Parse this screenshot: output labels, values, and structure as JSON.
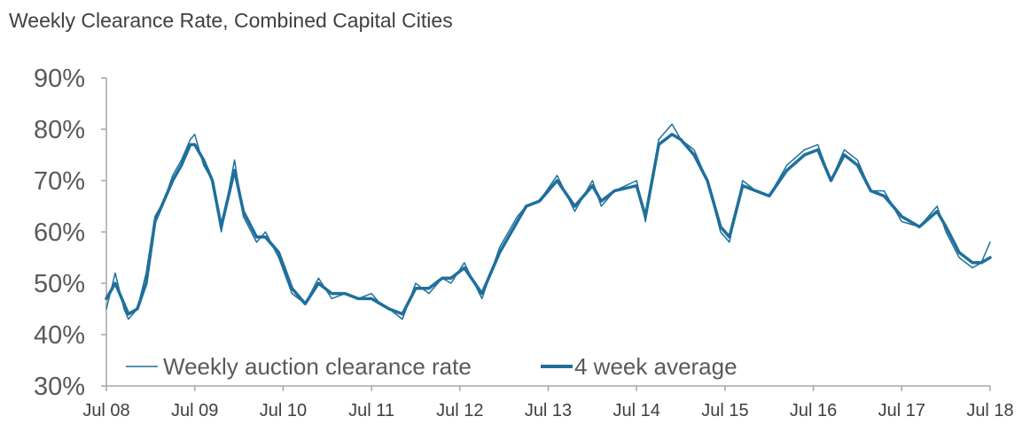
{
  "chart_data": {
    "type": "line",
    "title": "Weekly Clearance Rate, Combined Capital Cities",
    "xlabel": "",
    "ylabel": "",
    "ylim": [
      30,
      90
    ],
    "y_ticks": [
      "30%",
      "40%",
      "50%",
      "60%",
      "70%",
      "80%",
      "90%"
    ],
    "y_tick_values": [
      30,
      40,
      50,
      60,
      70,
      80,
      90
    ],
    "x_ticks": [
      "Jul 08",
      "Jul 09",
      "Jul 10",
      "Jul 11",
      "Jul 12",
      "Jul 13",
      "Jul 14",
      "Jul 15",
      "Jul 16",
      "Jul 17",
      "Jul 18"
    ],
    "x_tick_values": [
      2008.5,
      2009.5,
      2010.5,
      2011.5,
      2012.5,
      2013.5,
      2014.5,
      2015.5,
      2016.5,
      2017.5,
      2018.5
    ],
    "xlim": [
      2008.5,
      2018.5
    ],
    "colors": {
      "series": "#1f6f9c",
      "axis": "#a6a6a6"
    },
    "series": [
      {
        "name": "Weekly auction clearance rate",
        "style": "thin",
        "x": [
          2008.5,
          2008.6,
          2008.7,
          2008.75,
          2008.85,
          2008.95,
          2009.05,
          2009.15,
          2009.25,
          2009.35,
          2009.45,
          2009.5,
          2009.6,
          2009.7,
          2009.8,
          2009.95,
          2010.05,
          2010.2,
          2010.3,
          2010.45,
          2010.6,
          2010.75,
          2010.9,
          2011.05,
          2011.2,
          2011.35,
          2011.5,
          2011.6,
          2011.7,
          2011.85,
          2012.0,
          2012.15,
          2012.3,
          2012.4,
          2012.55,
          2012.75,
          2012.95,
          2013.15,
          2013.25,
          2013.4,
          2013.6,
          2013.8,
          2014.0,
          2014.1,
          2014.25,
          2014.5,
          2014.6,
          2014.75,
          2014.9,
          2015.0,
          2015.15,
          2015.3,
          2015.45,
          2015.55,
          2015.7,
          2015.85,
          2016.0,
          2016.2,
          2016.4,
          2016.55,
          2016.7,
          2016.85,
          2017.0,
          2017.15,
          2017.3,
          2017.5,
          2017.7,
          2017.9,
          2018.0,
          2018.15,
          2018.3,
          2018.4,
          2018.5
        ],
        "values": [
          45,
          52,
          45,
          43,
          45,
          52,
          63,
          66,
          71,
          74,
          78,
          79,
          73,
          70,
          60,
          74,
          63,
          58,
          60,
          55,
          48,
          46,
          51,
          47,
          48,
          47,
          48,
          46,
          45,
          43,
          50,
          48,
          51,
          50,
          54,
          47,
          57,
          63,
          65,
          66,
          71,
          64,
          70,
          65,
          68,
          70,
          62,
          78,
          81,
          78,
          76,
          70,
          60,
          58,
          70,
          68,
          67,
          73,
          76,
          77,
          70,
          76,
          74,
          68,
          68,
          62,
          61,
          65,
          60,
          55,
          53,
          54,
          58
        ]
      },
      {
        "name": "4 week average",
        "style": "thick",
        "x": [
          2008.5,
          2008.6,
          2008.7,
          2008.75,
          2008.85,
          2008.95,
          2009.05,
          2009.15,
          2009.25,
          2009.35,
          2009.45,
          2009.5,
          2009.6,
          2009.7,
          2009.8,
          2009.95,
          2010.05,
          2010.2,
          2010.3,
          2010.45,
          2010.6,
          2010.75,
          2010.9,
          2011.05,
          2011.2,
          2011.35,
          2011.5,
          2011.6,
          2011.7,
          2011.85,
          2012.0,
          2012.15,
          2012.3,
          2012.4,
          2012.55,
          2012.75,
          2012.95,
          2013.15,
          2013.25,
          2013.4,
          2013.6,
          2013.8,
          2014.0,
          2014.1,
          2014.25,
          2014.5,
          2014.6,
          2014.75,
          2014.9,
          2015.0,
          2015.15,
          2015.3,
          2015.45,
          2015.55,
          2015.7,
          2015.85,
          2016.0,
          2016.2,
          2016.4,
          2016.55,
          2016.7,
          2016.85,
          2017.0,
          2017.15,
          2017.3,
          2017.5,
          2017.7,
          2017.9,
          2018.0,
          2018.15,
          2018.3,
          2018.4,
          2018.5
        ],
        "values": [
          47,
          50,
          46,
          44,
          45,
          50,
          62,
          66,
          70,
          73,
          77,
          77,
          74,
          70,
          61,
          72,
          64,
          59,
          59,
          56,
          49,
          46,
          50,
          48,
          48,
          47,
          47,
          46,
          45,
          44,
          49,
          49,
          51,
          51,
          53,
          48,
          56,
          62,
          65,
          66,
          70,
          65,
          69,
          66,
          68,
          69,
          63,
          77,
          79,
          78,
          75,
          70,
          61,
          59,
          69,
          68,
          67,
          72,
          75,
          76,
          70,
          75,
          73,
          68,
          67,
          63,
          61,
          64,
          61,
          56,
          54,
          54,
          55
        ]
      }
    ]
  },
  "legend": {
    "position": "bottom-left",
    "items": [
      {
        "label": "Weekly auction clearance rate"
      },
      {
        "label": "4 week average"
      }
    ]
  }
}
